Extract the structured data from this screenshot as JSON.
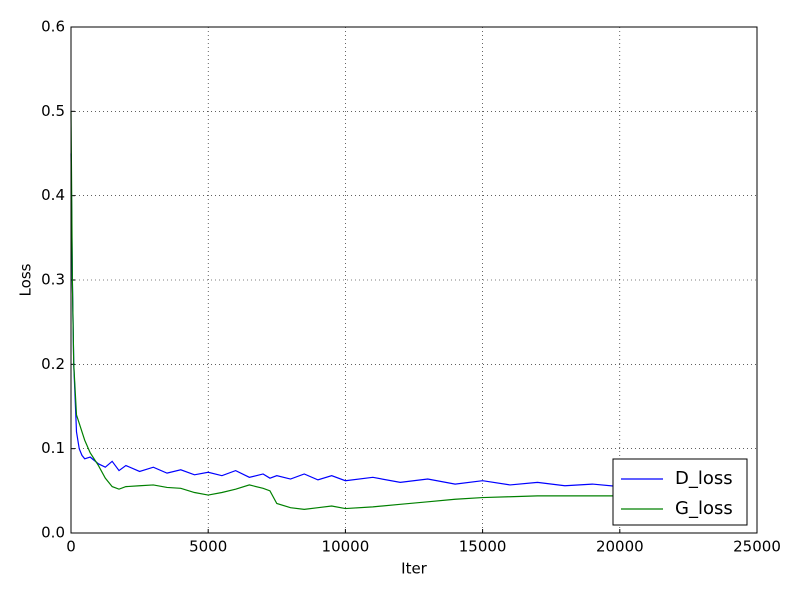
{
  "chart_data": {
    "type": "line",
    "x_label": "Iter",
    "y_label": "Loss",
    "x": [
      0,
      50,
      100,
      200,
      300,
      400,
      500,
      700,
      1000,
      1250,
      1500,
      1750,
      2000,
      2500,
      3000,
      3500,
      4000,
      4500,
      5000,
      5500,
      6000,
      6500,
      7000,
      7250,
      7500,
      8000,
      8500,
      9000,
      9500,
      10000,
      11000,
      12000,
      13000,
      14000,
      15000,
      16000,
      17000,
      18000,
      19000,
      20000
    ],
    "series": [
      {
        "name": "D_loss",
        "color": "#0000ff",
        "values": [
          0.45,
          0.3,
          0.2,
          0.12,
          0.1,
          0.092,
          0.088,
          0.09,
          0.082,
          0.078,
          0.085,
          0.074,
          0.08,
          0.073,
          0.078,
          0.071,
          0.075,
          0.069,
          0.072,
          0.068,
          0.074,
          0.066,
          0.07,
          0.065,
          0.068,
          0.064,
          0.07,
          0.063,
          0.068,
          0.062,
          0.066,
          0.06,
          0.064,
          0.058,
          0.062,
          0.057,
          0.06,
          0.056,
          0.058,
          0.055
        ]
      },
      {
        "name": "G_loss",
        "color": "#008000",
        "values": [
          0.5,
          0.3,
          0.2,
          0.14,
          0.13,
          0.12,
          0.11,
          0.095,
          0.08,
          0.065,
          0.055,
          0.052,
          0.055,
          0.056,
          0.057,
          0.054,
          0.053,
          0.048,
          0.045,
          0.048,
          0.052,
          0.057,
          0.053,
          0.05,
          0.035,
          0.03,
          0.028,
          0.03,
          0.032,
          0.029,
          0.031,
          0.034,
          0.037,
          0.04,
          0.042,
          0.043,
          0.044,
          0.044,
          0.044,
          0.044
        ]
      }
    ],
    "xlim": [
      0,
      25000
    ],
    "xticks": [
      0,
      5000,
      10000,
      15000,
      20000,
      25000
    ],
    "ylim": [
      0,
      0.6
    ],
    "yticks": [
      {
        "value": 0,
        "label": "0.0"
      },
      0.1,
      0.2,
      0.3,
      0.4,
      0.5,
      0.6
    ],
    "grid": true,
    "legend": "lower right"
  }
}
